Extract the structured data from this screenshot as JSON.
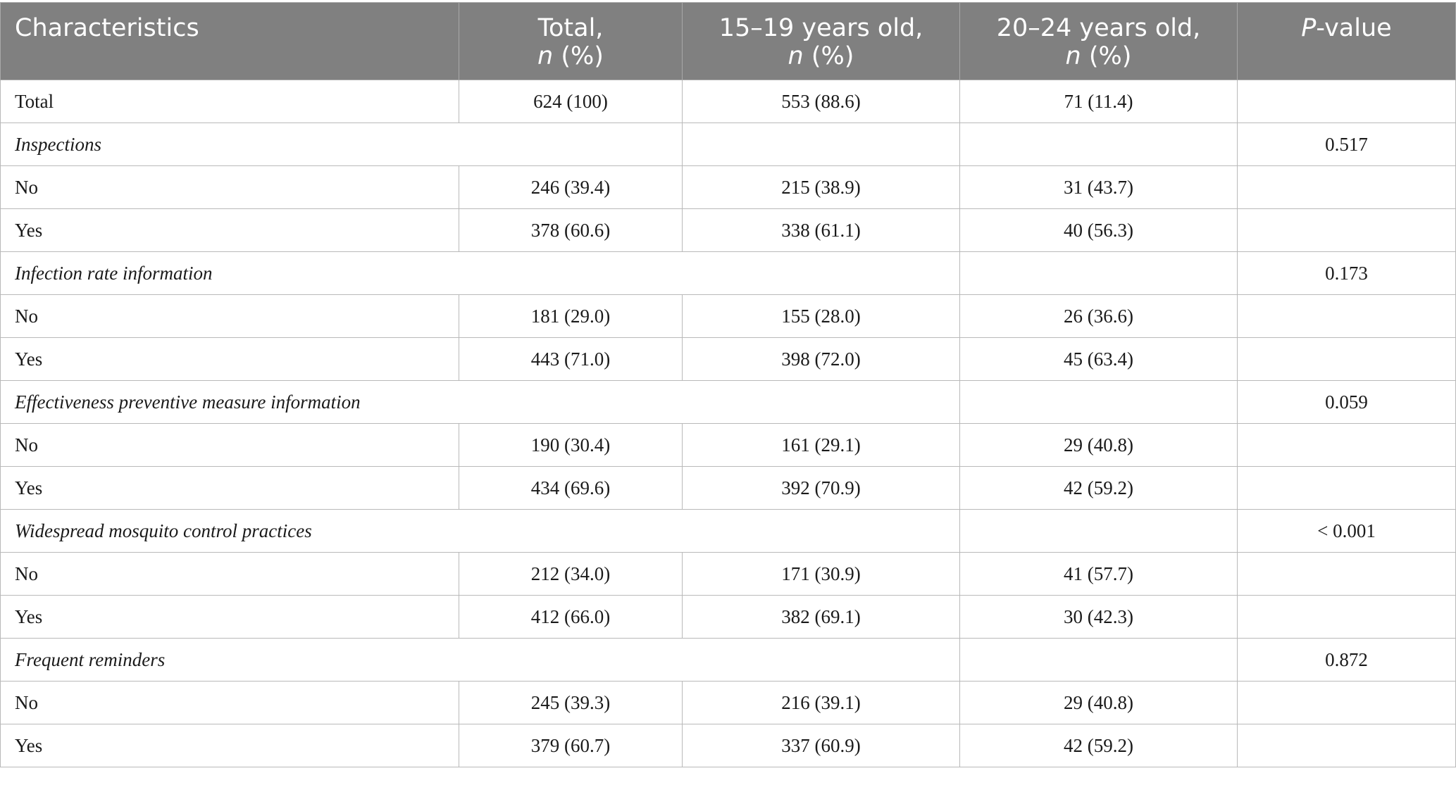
{
  "table": {
    "headers": {
      "characteristics": "Characteristics",
      "total_line1": "Total,",
      "total_line2_italic": "n",
      "total_line2_rest": " (%)",
      "age1_line1": "15–19 years old,",
      "age1_line2_italic": "n",
      "age1_line2_rest": " (%)",
      "age2_line1": "20–24 years old,",
      "age2_line2_italic": "n",
      "age2_line2_rest": " (%)",
      "pvalue_italic": "P",
      "pvalue_rest": "-value"
    },
    "rows": [
      {
        "label": "Total",
        "total": "624 (100)",
        "age1": "553 (88.6)",
        "age2": "71 (11.4)",
        "p": ""
      },
      {
        "label": "Inspections",
        "p": "0.517"
      },
      {
        "label": "No",
        "total": "246 (39.4)",
        "age1": "215 (38.9)",
        "age2": "31 (43.7)",
        "p": ""
      },
      {
        "label": "Yes",
        "total": "378 (60.6)",
        "age1": "338 (61.1)",
        "age2": "40 (56.3)",
        "p": ""
      },
      {
        "label": "Infection rate information",
        "p": "0.173"
      },
      {
        "label": "No",
        "total": "181 (29.0)",
        "age1": "155 (28.0)",
        "age2": "26 (36.6)",
        "p": ""
      },
      {
        "label": "Yes",
        "total": "443 (71.0)",
        "age1": "398 (72.0)",
        "age2": "45 (63.4)",
        "p": ""
      },
      {
        "label": "Effectiveness preventive measure information",
        "p": "0.059"
      },
      {
        "label": "No",
        "total": "190 (30.4)",
        "age1": "161 (29.1)",
        "age2": "29 (40.8)",
        "p": ""
      },
      {
        "label": "Yes",
        "total": "434 (69.6)",
        "age1": "392 (70.9)",
        "age2": "42 (59.2)",
        "p": ""
      },
      {
        "label": "Widespread mosquito control practices",
        "p": "< 0.001"
      },
      {
        "label": "No",
        "total": "212 (34.0)",
        "age1": "171 (30.9)",
        "age2": "41 (57.7)",
        "p": ""
      },
      {
        "label": "Yes",
        "total": "412 (66.0)",
        "age1": "382 (69.1)",
        "age2": "30 (42.3)",
        "p": ""
      },
      {
        "label": "Frequent reminders",
        "p": "0.872"
      },
      {
        "label": "No",
        "total": "245 (39.3)",
        "age1": "216 (39.1)",
        "age2": "29 (40.8)",
        "p": ""
      },
      {
        "label": "Yes",
        "total": "379 (60.7)",
        "age1": "337 (60.9)",
        "age2": "42 (59.2)",
        "p": ""
      }
    ]
  }
}
